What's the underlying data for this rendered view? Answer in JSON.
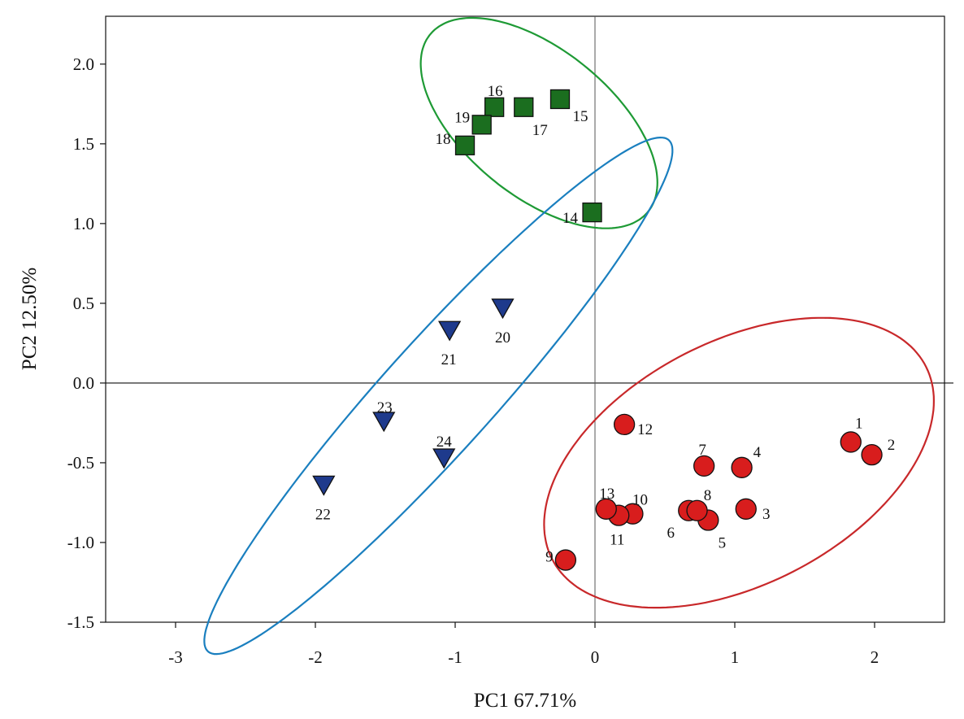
{
  "chart_data": {
    "type": "scatter",
    "title": "",
    "xlabel": "PC1 67.71%",
    "ylabel": "PC2 12.50%",
    "xlim": [
      -3.5,
      2.5
    ],
    "ylim": [
      -1.5,
      2.3
    ],
    "xticks": [
      -3,
      -2,
      -1,
      0,
      1,
      2
    ],
    "xtick_labels": [
      "-3",
      "-2",
      "-1",
      "0",
      "1",
      "2"
    ],
    "yticks": [
      -1.5,
      -1.0,
      -0.5,
      0.0,
      0.5,
      1.0,
      1.5,
      2.0
    ],
    "ytick_labels": [
      "-1.5",
      "-1.0",
      "-0.5",
      "0.0",
      "0.5",
      "1.0",
      "1.5",
      "2.0"
    ],
    "colors": {
      "red_fill": "#d81d1d",
      "green_fill": "#1b6e1f",
      "blue_fill": "#1e3a8c",
      "red_ellipse": "#c8282a",
      "green_ellipse": "#1e9a35",
      "blue_ellipse": "#1a7fbf",
      "outline": "#111111"
    },
    "series": [
      {
        "name": "red",
        "marker": "circle",
        "points": [
          {
            "label": "1",
            "x": 1.83,
            "y": -0.37
          },
          {
            "label": "2",
            "x": 1.98,
            "y": -0.45
          },
          {
            "label": "3",
            "x": 1.08,
            "y": -0.79
          },
          {
            "label": "4",
            "x": 1.05,
            "y": -0.53
          },
          {
            "label": "5",
            "x": 0.81,
            "y": -0.86
          },
          {
            "label": "6",
            "x": 0.67,
            "y": -0.8
          },
          {
            "label": "7",
            "x": 0.78,
            "y": -0.52
          },
          {
            "label": "8",
            "x": 0.73,
            "y": -0.8
          },
          {
            "label": "9",
            "x": -0.21,
            "y": -1.11
          },
          {
            "label": "10",
            "x": 0.27,
            "y": -0.82
          },
          {
            "label": "11",
            "x": 0.17,
            "y": -0.83
          },
          {
            "label": "12",
            "x": 0.21,
            "y": -0.26
          },
          {
            "label": "13",
            "x": 0.08,
            "y": -0.79
          }
        ]
      },
      {
        "name": "green",
        "marker": "square",
        "points": [
          {
            "label": "14",
            "x": -0.02,
            "y": 1.07
          },
          {
            "label": "15",
            "x": -0.25,
            "y": 1.78
          },
          {
            "label": "16",
            "x": -0.72,
            "y": 1.73
          },
          {
            "label": "17",
            "x": -0.51,
            "y": 1.73
          },
          {
            "label": "18",
            "x": -0.93,
            "y": 1.49
          },
          {
            "label": "19",
            "x": -0.81,
            "y": 1.62
          }
        ]
      },
      {
        "name": "blue",
        "marker": "triangle-down",
        "points": [
          {
            "label": "20",
            "x": -0.66,
            "y": 0.47
          },
          {
            "label": "21",
            "x": -1.04,
            "y": 0.33
          },
          {
            "label": "22",
            "x": -1.94,
            "y": -0.64
          },
          {
            "label": "23",
            "x": -1.51,
            "y": -0.24
          },
          {
            "label": "24",
            "x": -1.08,
            "y": -0.47
          }
        ]
      }
    ],
    "ellipses": [
      {
        "name": "red",
        "cx": 1.03,
        "cy": -0.5,
        "rx": 1.47,
        "ry": 0.78,
        "angle_deg": 22
      },
      {
        "name": "green",
        "cx": -0.4,
        "cy": 1.63,
        "rx": 0.96,
        "ry": 0.48,
        "angle_deg": -33
      },
      {
        "name": "blue",
        "cx": -1.12,
        "cy": -0.08,
        "rx": 2.3,
        "ry": 0.37,
        "angle_deg": 44
      }
    ]
  }
}
